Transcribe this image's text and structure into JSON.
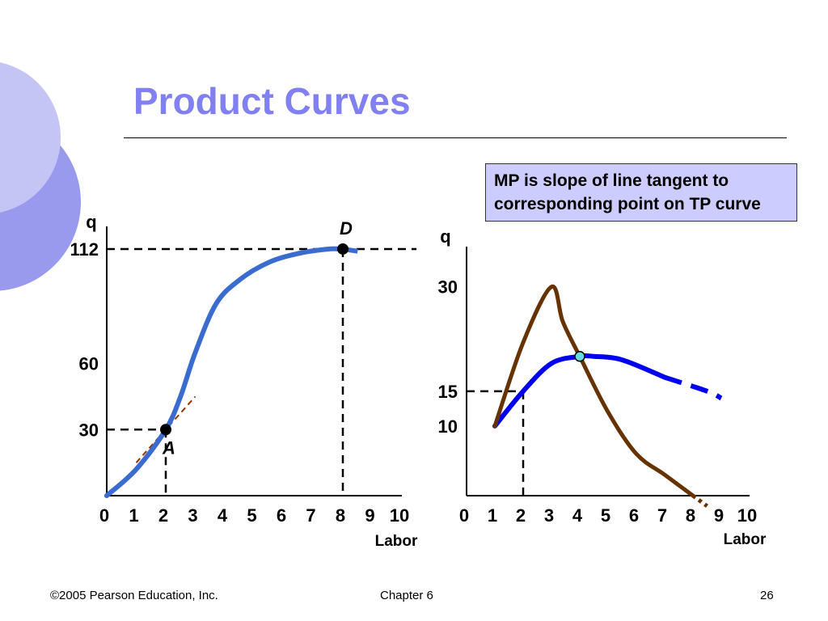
{
  "slide": {
    "title": "Product Curves",
    "callout": "MP is slope of line tangent to corresponding point on TP curve",
    "footer_left": "©2005 Pearson Education, Inc.",
    "footer_center": "Chapter 6",
    "footer_right": "26"
  },
  "colors": {
    "title": "#8080f0",
    "tp_curve": "#3a6ccf",
    "mp_curve": "#0000ee",
    "ap_curve": "#663300",
    "tangent": "#993300",
    "callout_bg": "#ccccff"
  },
  "chart_data": [
    {
      "type": "line",
      "ylabel": "q",
      "xlabel": "Labor",
      "xlim": [
        0,
        10
      ],
      "ylim": [
        0,
        123
      ],
      "x_ticks": [
        "0",
        "1",
        "2",
        "3",
        "4",
        "5",
        "6",
        "7",
        "8",
        "9",
        "10"
      ],
      "y_ticks": [
        {
          "label": "30",
          "value": 30
        },
        {
          "label": "60",
          "value": 60
        },
        {
          "label": "112",
          "value": 112
        }
      ],
      "series": [
        {
          "x": [
            0,
            1,
            2,
            2.5,
            3,
            3.7,
            4.5,
            5.5,
            6.5,
            7.5,
            8,
            8.5
          ],
          "y": [
            0,
            12,
            30,
            45,
            65,
            87,
            98,
            106,
            110,
            112,
            112,
            111
          ],
          "dashed_from_x": 8
        }
      ],
      "points": [
        {
          "label": "A",
          "x": 2,
          "y": 30
        },
        {
          "label": "D",
          "x": 8,
          "y": 112
        }
      ],
      "tangent_at": {
        "point": "A",
        "slope": 15
      }
    },
    {
      "type": "line",
      "ylabel": "q",
      "xlabel": "Labor",
      "xlim": [
        0,
        10
      ],
      "ylim": [
        0,
        36
      ],
      "x_ticks": [
        "0",
        "1",
        "2",
        "3",
        "4",
        "5",
        "6",
        "7",
        "8",
        "9",
        "10"
      ],
      "y_ticks": [
        {
          "label": "10",
          "value": 10
        },
        {
          "label": "15",
          "value": 15
        },
        {
          "label": "30",
          "value": 30
        }
      ],
      "series": [
        {
          "x": [
            1,
            2,
            3,
            4,
            4.5,
            5.5,
            7,
            8.5,
            9
          ],
          "y": [
            10,
            15,
            19,
            20,
            20,
            19.5,
            17,
            15,
            14
          ],
          "dashed_from_x": 7.5
        },
        {
          "x": [
            1,
            2,
            3,
            3.4,
            4,
            5,
            6,
            7,
            8,
            8.5
          ],
          "y": [
            10,
            22,
            30,
            25,
            20,
            12,
            6,
            3,
            0,
            -1.5
          ],
          "dashed_from_x": 8
        }
      ],
      "points": [
        {
          "x": 4,
          "y": 20
        }
      ],
      "guides": [
        {
          "x": 2,
          "y": 15
        }
      ]
    }
  ]
}
